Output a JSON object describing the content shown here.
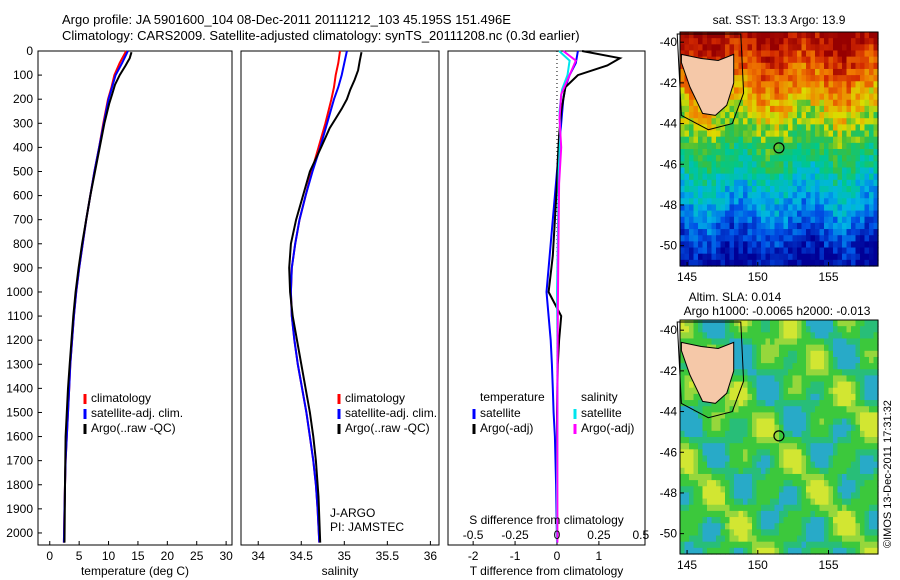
{
  "header": {
    "line1": "Argo profile: JA 5901600_104 08-Dec-2011 20111212_103 45.195S 151.496E",
    "line2": "Climatology: CARS2009. Satellite-adjusted climatology: synTS_20111208.nc (0.3d earlier)"
  },
  "credits": {
    "program": "J-ARGO",
    "pi": "PI: JAMSTEC",
    "stamp": "©IMOS 13-Dec-2011 17:31:32"
  },
  "colors": {
    "climatology": "#ff0000",
    "satellite": "#0000ff",
    "argo": "#000000",
    "sat_salinity": "#00e5ee",
    "argo_salinity": "#ff00ff",
    "land": "#f5c8a8"
  },
  "chart_data": [
    {
      "type": "line",
      "panel": "temperature",
      "xlabel": "temperature (deg C)",
      "xlim": [
        -2,
        31
      ],
      "xticks": [
        0,
        5,
        10,
        15,
        20,
        25,
        30
      ],
      "ylim": [
        0,
        2050
      ],
      "yticks": [
        0,
        100,
        200,
        300,
        400,
        500,
        600,
        700,
        800,
        900,
        1000,
        1100,
        1200,
        1300,
        1400,
        1500,
        1600,
        1700,
        1800,
        1900,
        2000
      ],
      "legend": [
        "climatology",
        "satellite-adj. clim.",
        "Argo(..raw -QC)"
      ],
      "legend_loc": "lower-center",
      "series": [
        {
          "name": "climatology",
          "color": "#ff0000",
          "x": [
            13.0,
            11.9,
            11.0,
            10.5,
            9.9,
            9.1,
            8.4,
            7.6,
            6.9,
            6.2,
            5.6,
            5.0,
            4.5,
            4.1,
            3.8,
            3.5,
            3.3,
            3.1,
            2.9,
            2.7,
            2.6,
            2.5,
            2.4
          ],
          "y": [
            0,
            50,
            100,
            150,
            200,
            300,
            400,
            500,
            600,
            700,
            800,
            900,
            1000,
            1100,
            1200,
            1300,
            1400,
            1500,
            1600,
            1700,
            1800,
            1900,
            2040
          ]
        },
        {
          "name": "satellite-adj. clim.",
          "color": "#0000ff",
          "x": [
            13.3,
            12.3,
            11.2,
            10.6,
            10.0,
            9.2,
            8.4,
            7.6,
            6.9,
            6.2,
            5.6,
            5.0,
            4.5,
            4.1,
            3.8,
            3.5,
            3.3,
            3.1,
            2.9,
            2.7,
            2.6,
            2.5,
            2.4
          ],
          "y": [
            0,
            50,
            100,
            150,
            200,
            300,
            400,
            500,
            600,
            700,
            800,
            900,
            1000,
            1100,
            1200,
            1300,
            1400,
            1500,
            1600,
            1700,
            1800,
            1900,
            2040
          ]
        },
        {
          "name": "Argo(..raw -QC)",
          "color": "#000000",
          "x": [
            13.9,
            13.6,
            12.9,
            11.9,
            11.1,
            10.6,
            10.1,
            9.3,
            8.5,
            7.7,
            6.9,
            6.2,
            5.5,
            4.9,
            4.4,
            4.0,
            3.7,
            3.4,
            3.1,
            2.9,
            2.7,
            2.6,
            2.5
          ],
          "y": [
            5,
            30,
            60,
            100,
            140,
            180,
            220,
            300,
            400,
            500,
            600,
            700,
            800,
            900,
            1000,
            1100,
            1200,
            1300,
            1400,
            1500,
            1600,
            1800,
            2040
          ]
        }
      ]
    },
    {
      "type": "line",
      "panel": "salinity",
      "xlabel": "salinity",
      "xlim": [
        33.8,
        36.1
      ],
      "xticks": [
        34,
        34.5,
        35,
        35.5,
        36
      ],
      "ylim": [
        0,
        2050
      ],
      "legend": [
        "climatology",
        "satellite-adj. clim.",
        "Argo(..raw -QC)"
      ],
      "legend_loc": "lower-right",
      "series": [
        {
          "name": "climatology",
          "color": "#ff0000",
          "x": [
            34.95,
            34.93,
            34.9,
            34.88,
            34.85,
            34.78,
            34.7,
            34.62,
            34.55,
            34.48,
            34.43,
            34.39,
            34.38,
            34.39,
            34.42,
            34.46,
            34.51,
            34.56,
            34.6,
            34.64,
            34.67,
            34.69,
            34.71
          ],
          "y": [
            0,
            50,
            100,
            150,
            200,
            300,
            400,
            500,
            600,
            700,
            800,
            900,
            1000,
            1100,
            1200,
            1300,
            1400,
            1500,
            1600,
            1700,
            1800,
            1900,
            2040
          ]
        },
        {
          "name": "satellite-adj. clim.",
          "color": "#0000ff",
          "x": [
            35.03,
            35.0,
            34.97,
            34.93,
            34.88,
            34.8,
            34.72,
            34.63,
            34.55,
            34.48,
            34.43,
            34.39,
            34.38,
            34.39,
            34.42,
            34.46,
            34.51,
            34.56,
            34.6,
            34.64,
            34.67,
            34.69,
            34.71
          ],
          "y": [
            0,
            50,
            100,
            150,
            200,
            300,
            400,
            500,
            600,
            700,
            800,
            900,
            1000,
            1100,
            1200,
            1300,
            1400,
            1500,
            1600,
            1700,
            1800,
            1900,
            2040
          ]
        },
        {
          "name": "Argo(..raw -QC)",
          "color": "#000000",
          "x": [
            35.2,
            35.18,
            35.16,
            35.12,
            35.07,
            35.03,
            34.97,
            34.9,
            34.83,
            34.73,
            34.6,
            34.52,
            34.44,
            34.38,
            34.36,
            34.37,
            34.4,
            34.45,
            34.5,
            34.55,
            34.6,
            34.64,
            34.67,
            34.7,
            34.72
          ],
          "y": [
            5,
            40,
            80,
            120,
            160,
            200,
            240,
            280,
            320,
            400,
            500,
            600,
            700,
            800,
            900,
            1000,
            1100,
            1200,
            1300,
            1400,
            1500,
            1600,
            1700,
            1850,
            2040
          ]
        }
      ]
    },
    {
      "type": "line",
      "panel": "differences",
      "xlabel": "T difference from climatology",
      "xlabel2": "S difference from climatology",
      "xlim": [
        -2.6,
        2.1
      ],
      "xticks": [
        -2,
        -1,
        0,
        1
      ],
      "x2ticks": [
        "-0.5",
        "-0.25",
        "0",
        "0.25",
        "0.5"
      ],
      "ylim": [
        0,
        2050
      ],
      "legend_groups": [
        {
          "title": "temperature",
          "entries": [
            "satellite",
            "Argo(-adj)"
          ]
        },
        {
          "title": "salinity",
          "entries": [
            "satellite",
            "Argo(-adj)"
          ]
        }
      ],
      "series": [
        {
          "name": "T satellite",
          "color": "#0000ff",
          "x": [
            0.5,
            0.45,
            0.3,
            0.2,
            0.15,
            0.1,
            0.05,
            0.0,
            -0.05,
            -0.1,
            -0.15,
            -0.2,
            -0.25,
            -0.2,
            -0.15,
            -0.12,
            -0.1,
            -0.08,
            -0.05,
            -0.02,
            0.0
          ],
          "y": [
            0,
            50,
            100,
            150,
            200,
            300,
            400,
            500,
            600,
            700,
            800,
            900,
            1000,
            1100,
            1200,
            1300,
            1400,
            1500,
            1600,
            1800,
            2040
          ]
        },
        {
          "name": "T Argo(-adj)",
          "color": "#000000",
          "x": [
            0.6,
            1.5,
            1.2,
            0.5,
            0.2,
            0.1,
            0.05,
            0.02,
            0.0,
            -0.05,
            -0.1,
            -0.2,
            -0.05,
            0.1,
            0.05,
            0.02,
            0.0,
            0.0,
            0.0,
            0.0
          ],
          "y": [
            0,
            30,
            60,
            100,
            150,
            250,
            350,
            450,
            550,
            700,
            850,
            1000,
            1050,
            1100,
            1200,
            1300,
            1500,
            1700,
            1900,
            2040
          ]
        },
        {
          "name": "S satellite",
          "color": "#00e5ee",
          "x": [
            0.05,
            0.3,
            0.25,
            0.12,
            0.06,
            0.08,
            0.04,
            0.03,
            0.02,
            0.0,
            0.01,
            0.01,
            0.0,
            0.0
          ],
          "y": [
            0,
            40,
            100,
            160,
            250,
            350,
            500,
            650,
            800,
            1000,
            1200,
            1500,
            1800,
            2040
          ]
        },
        {
          "name": "S Argo(-adj)",
          "color": "#ff00ff",
          "x": [
            0.15,
            0.45,
            0.3,
            0.1,
            0.06,
            0.1,
            0.05,
            0.04,
            0.03,
            0.02,
            0.01,
            0.01,
            0.01
          ],
          "y": [
            0,
            40,
            100,
            180,
            280,
            400,
            550,
            700,
            900,
            1100,
            1400,
            1700,
            2040
          ]
        }
      ]
    },
    {
      "type": "heatmap",
      "panel": "sst_map",
      "title": "sat. SST: 13.3  Argo: 13.9",
      "xlim": [
        144.5,
        158.5
      ],
      "xticks": [
        145,
        150,
        155
      ],
      "ylim": [
        -51,
        -39.5
      ],
      "yticks": [
        -40,
        -42,
        -44,
        -46,
        -48,
        -50
      ],
      "marker": {
        "lon": 151.496,
        "lat": -45.195
      }
    },
    {
      "type": "heatmap",
      "panel": "sla_map",
      "title": "Altim. SLA: 0.014",
      "subtitle": "Argo h1000: -0.0065 h2000: -0.013",
      "xlim": [
        144.5,
        158.5
      ],
      "xticks": [
        145,
        150,
        155
      ],
      "ylim": [
        -51,
        -39.5
      ],
      "yticks": [
        -40,
        -42,
        -44,
        -46,
        -48,
        -50
      ],
      "marker": {
        "lon": 151.496,
        "lat": -45.195
      }
    }
  ]
}
